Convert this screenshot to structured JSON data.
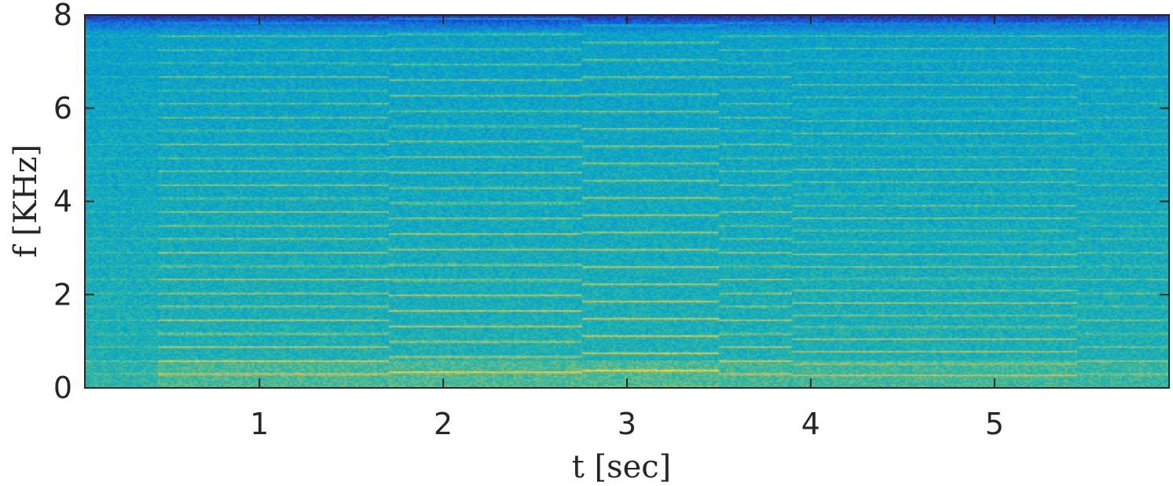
{
  "chart_data": {
    "type": "heatmap",
    "title": "",
    "xlabel": "t [sec]",
    "ylabel": "f [KHz]",
    "xlim": [
      0.05,
      5.95
    ],
    "ylim": [
      0,
      8
    ],
    "x_ticks": [
      1,
      2,
      3,
      4,
      5
    ],
    "x_tick_labels": [
      "1",
      "2",
      "3",
      "4",
      "5"
    ],
    "y_ticks": [
      0,
      2,
      4,
      6,
      8
    ],
    "y_tick_labels": [
      "0",
      "2",
      "4",
      "6",
      "8"
    ],
    "colormap": "parula",
    "colors": [
      "#352a87",
      "#0f5cdd",
      "#1481d6",
      "#06a4ca",
      "#2eb7a4",
      "#87bf77",
      "#d1bb59",
      "#fec832",
      "#f9fb0e"
    ],
    "grid": false,
    "notes_segments": [
      {
        "t_start": 0.05,
        "t_end": 0.45,
        "f0_khz": 0.29,
        "energy": 0.25
      },
      {
        "t_start": 0.45,
        "t_end": 1.7,
        "f0_khz": 0.29,
        "energy": 0.75
      },
      {
        "t_start": 1.7,
        "t_end": 2.75,
        "f0_khz": 0.33,
        "energy": 0.8
      },
      {
        "t_start": 2.75,
        "t_end": 3.5,
        "f0_khz": 0.37,
        "energy": 0.85
      },
      {
        "t_start": 3.5,
        "t_end": 3.9,
        "f0_khz": 0.29,
        "energy": 0.7
      },
      {
        "t_start": 3.9,
        "t_end": 5.45,
        "f0_khz": 0.26,
        "energy": 0.65
      },
      {
        "t_start": 5.45,
        "t_end": 5.95,
        "f0_khz": 0.29,
        "energy": 0.45
      }
    ]
  }
}
